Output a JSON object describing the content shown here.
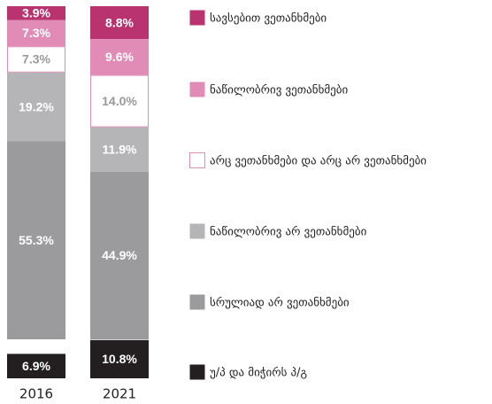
{
  "chart_data": {
    "type": "stacked-bar",
    "categories": [
      "2016",
      "2021"
    ],
    "series": [
      {
        "name": "სავსებით ვეთანხმები",
        "color": "#b8336f",
        "values": [
          3.9,
          8.8
        ],
        "value_labels": [
          "3.9%",
          "8.8%"
        ]
      },
      {
        "name": "ნაწილობრივ ვეთანხმები",
        "color": "#e08cb6",
        "values": [
          7.3,
          9.6
        ],
        "value_labels": [
          "7.3%",
          "9.6%"
        ]
      },
      {
        "name": "არც ვეთანხმები და არც არ ვეთანხმები",
        "color": "#ffffff",
        "values": [
          7.3,
          14.0
        ],
        "value_labels": [
          "7.3%",
          "14.0%"
        ]
      },
      {
        "name": "ნაწილობრივ არ ვეთანხმები",
        "color": "#b5b5b7",
        "values": [
          19.2,
          11.9
        ],
        "value_labels": [
          "19.2%",
          "11.9%"
        ]
      },
      {
        "name": "სრულიად არ ვეთანხმები",
        "color": "#9b9b9d",
        "values": [
          55.3,
          44.9
        ],
        "value_labels": [
          "55.3%",
          "44.9%"
        ]
      },
      {
        "name": "უ/პ და მიჭირს პ/გ",
        "color": "#231f20",
        "values": [
          6.9,
          10.8
        ],
        "value_labels": [
          "6.9%",
          "10.8%"
        ]
      }
    ]
  }
}
